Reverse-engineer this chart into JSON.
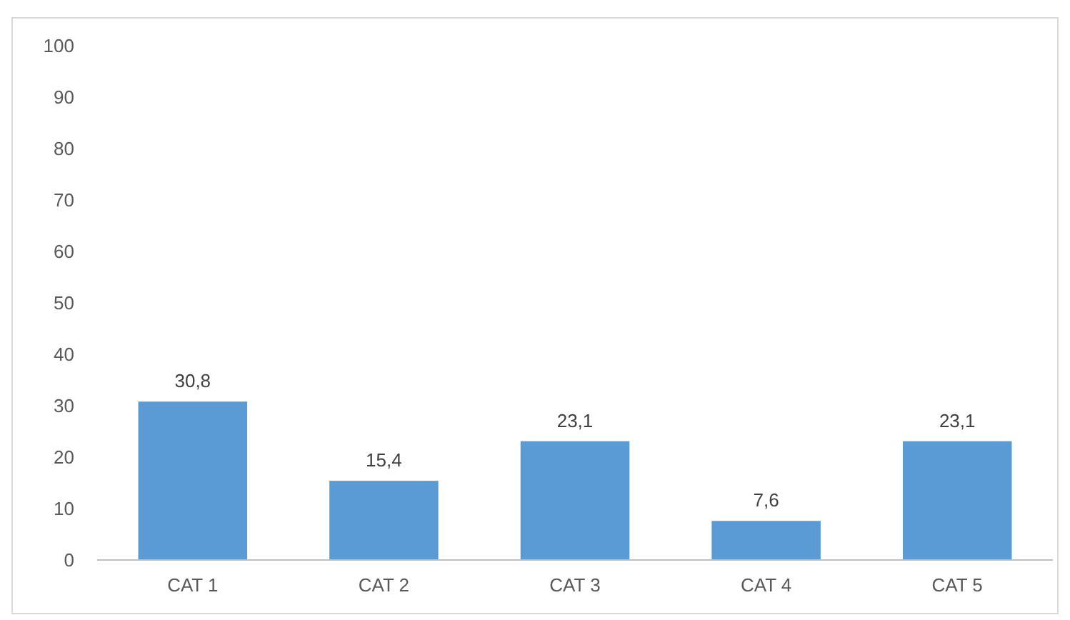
{
  "chart_data": {
    "type": "bar",
    "categories": [
      "CAT 1",
      "CAT 2",
      "CAT 3",
      "CAT 4",
      "CAT 5"
    ],
    "values": [
      30.8,
      15.4,
      23.1,
      7.6,
      23.1
    ],
    "value_labels": [
      "30,8",
      "15,4",
      "23,1",
      "7,6",
      "23,1"
    ],
    "color": "#5b9bd5",
    "ylim": [
      0,
      100
    ],
    "yticks": [
      0,
      10,
      20,
      30,
      40,
      50,
      60,
      70,
      80,
      90,
      100
    ],
    "grid": false
  }
}
